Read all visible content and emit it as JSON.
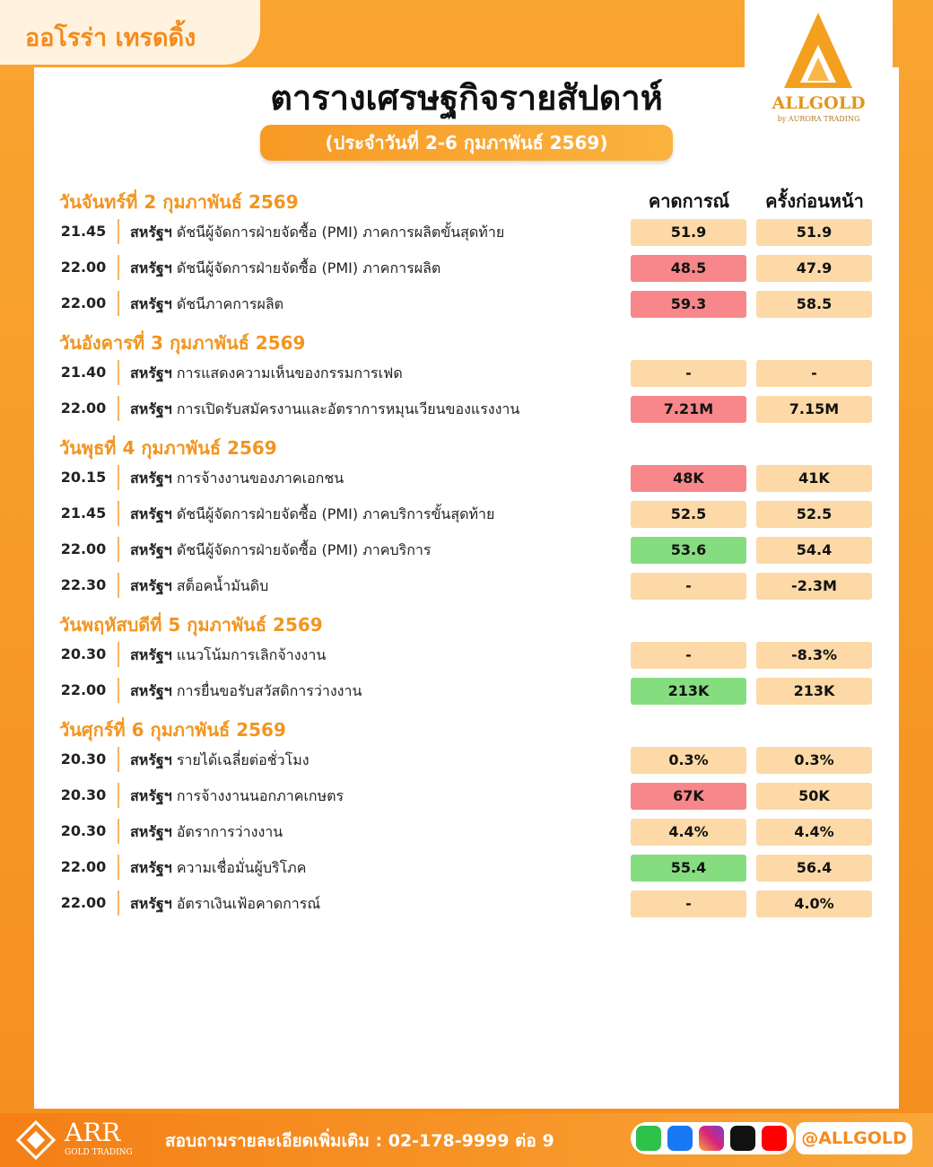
{
  "header": {
    "brand": "ออโรร่า เทรดดิ้ง",
    "title": "ตารางเศรษฐกิจรายสัปดาห์",
    "subtitle": "(ประจำวันที่ 2-6 กุมภาพันธ์ 2569)",
    "logo": "ALLGOLD",
    "logo_tagline": "by AURORA TRADING"
  },
  "table": {
    "columns": [
      "คาดการณ์",
      "ครั้งก่อนหน้า"
    ],
    "days": [
      {
        "date": "วันจันทร์ที่ 2 กุมภาพันธ์ 2569",
        "events": [
          {
            "time": "21.45",
            "country": "สหรัฐฯ",
            "event": "ดัชนีผู้จัดการฝ่ายจัดซื้อ (PMI) ภาคการผลิตขั้นสุดท้าย",
            "forecast": "51.9",
            "previous": "51.9",
            "forecast_color": "#fcd9a6"
          },
          {
            "time": "22.00",
            "country": "สหรัฐฯ",
            "event": "ดัชนีผู้จัดการฝ่ายจัดซื้อ (PMI) ภาคการผลิต",
            "forecast": "48.5",
            "previous": "47.9",
            "forecast_color": "#f7878a"
          },
          {
            "time": "22.00",
            "country": "สหรัฐฯ",
            "event": "ดัชนีภาคการผลิต",
            "forecast": "59.3",
            "previous": "58.5",
            "forecast_color": "#f7878a"
          }
        ]
      },
      {
        "date": "วันอังคารที่ 3 กุมภาพันธ์ 2569",
        "events": [
          {
            "time": "21.40",
            "country": "สหรัฐฯ",
            "event": "การแสดงความเห็นของกรรมการเฟด",
            "forecast": "-",
            "previous": "-",
            "forecast_color": "#fcd9a6"
          },
          {
            "time": "22.00",
            "country": "สหรัฐฯ",
            "event": "การเปิดรับสมัครงานและอัตราการหมุนเวียนของแรงงาน",
            "forecast": "7.21M",
            "previous": "7.15M",
            "forecast_color": "#f7878a"
          }
        ]
      },
      {
        "date": "วันพุธที่ 4 กุมภาพันธ์ 2569",
        "events": [
          {
            "time": "20.15",
            "country": "สหรัฐฯ",
            "event": "การจ้างงานของภาคเอกชน",
            "forecast": "48K",
            "previous": "41K",
            "forecast_color": "#f7878a"
          },
          {
            "time": "21.45",
            "country": "สหรัฐฯ",
            "event": "ดัชนีผู้จัดการฝ่ายจัดซื้อ (PMI) ภาคบริการขั้นสุดท้าย",
            "forecast": "52.5",
            "previous": "52.5",
            "forecast_color": "#fcd9a6"
          },
          {
            "time": "22.00",
            "country": "สหรัฐฯ",
            "event": "ดัชนีผู้จัดการฝ่ายจัดซื้อ (PMI) ภาคบริการ",
            "forecast": "53.6",
            "previous": "54.4",
            "forecast_color": "#86dd80"
          },
          {
            "time": "22.30",
            "country": "สหรัฐฯ",
            "event": "สต็อคน้ำมันดิบ",
            "forecast": "-",
            "previous": "-2.3M",
            "forecast_color": "#fcd9a6"
          }
        ]
      },
      {
        "date": "วันพฤหัสบดีที่ 5 กุมภาพันธ์ 2569",
        "events": [
          {
            "time": "20.30",
            "country": "สหรัฐฯ",
            "event": "แนวโน้มการเลิกจ้างงาน",
            "forecast": "-",
            "previous": "-8.3%",
            "forecast_color": "#fcd9a6"
          },
          {
            "time": "22.00",
            "country": "สหรัฐฯ",
            "event": "การยื่นขอรับสวัสดิการว่างงาน",
            "forecast": "213K",
            "previous": "213K",
            "forecast_color": "#86dd80"
          }
        ]
      },
      {
        "date": "วันศุกร์ที่ 6 กุมภาพันธ์ 2569",
        "events": [
          {
            "time": "20.30",
            "country": "สหรัฐฯ",
            "event": "รายได้เฉลี่ยต่อชั่วโมง",
            "forecast": "0.3%",
            "previous": "0.3%",
            "forecast_color": "#fcd9a6"
          },
          {
            "time": "20.30",
            "country": "สหรัฐฯ",
            "event": "การจ้างงานนอกภาคเกษตร",
            "forecast": "67K",
            "previous": "50K",
            "forecast_color": "#f7878a"
          },
          {
            "time": "20.30",
            "country": "สหรัฐฯ",
            "event": "อัตราการว่างงาน",
            "forecast": "4.4%",
            "previous": "4.4%",
            "forecast_color": "#fcd9a6"
          },
          {
            "time": "22.00",
            "country": "สหรัฐฯ",
            "event": "ความเชื่อมั่นผู้บริโภค",
            "forecast": "55.4",
            "previous": "56.4",
            "forecast_color": "#86dd80"
          },
          {
            "time": "22.00",
            "country": "สหรัฐฯ",
            "event": "อัตราเงินเฟ้อคาดการณ์",
            "forecast": "-",
            "previous": "4.0%",
            "forecast_color": "#fcd9a6"
          }
        ]
      }
    ]
  },
  "footer": {
    "company": "ARR",
    "company_tagline": "GOLD TRADING",
    "contact": "สอบถามรายละเอียดเพิ่มเติม : 02-178-9999 ต่อ 9",
    "handle": "@ALLGOLD"
  }
}
